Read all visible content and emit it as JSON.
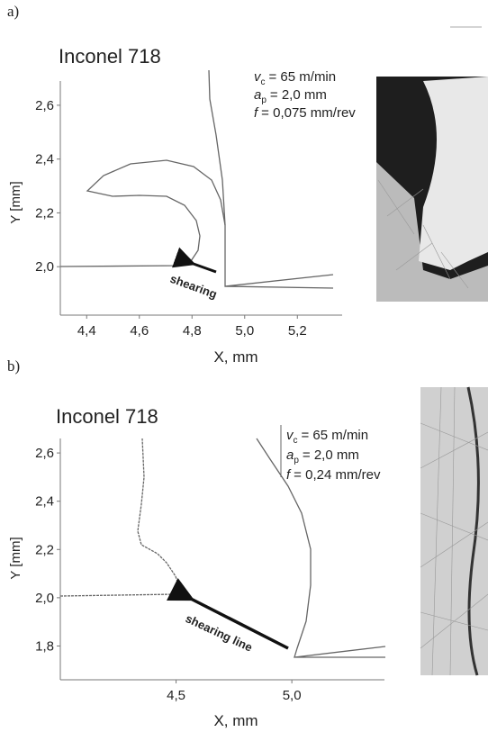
{
  "panels": [
    {
      "label": "a)",
      "title": "Inconel 718",
      "params": [
        {
          "symbol": "v",
          "subscript": "c",
          "text": "= 65 m/min"
        },
        {
          "symbol": "a",
          "subscript": "p",
          "text": "= 2,0 mm"
        },
        {
          "symbol": "f",
          "text": "= 0,075 mm/rev"
        }
      ],
      "x_label": "X, mm",
      "y_label": "Y [mm]",
      "xlim": [
        4.3,
        5.37
      ],
      "ylim": [
        1.82,
        2.69
      ],
      "xticks": [
        {
          "value": 4.4,
          "label": "4,4"
        },
        {
          "value": 4.6,
          "label": "4,6"
        },
        {
          "value": 4.8,
          "label": "4,8"
        },
        {
          "value": 5.0,
          "label": "5,0"
        },
        {
          "value": 5.2,
          "label": "5,2"
        }
      ],
      "yticks": [
        {
          "value": 2.0,
          "label": "2,0"
        },
        {
          "value": 2.2,
          "label": "2,2"
        },
        {
          "value": 2.4,
          "label": "2,4"
        },
        {
          "value": 2.6,
          "label": "2,6"
        }
      ],
      "annotation": "shearing"
    },
    {
      "label": "b)",
      "title": "Inconel 718",
      "params": [
        {
          "symbol": "v",
          "subscript": "c",
          "text": "= 65 m/min"
        },
        {
          "symbol": "a",
          "subscript": "p",
          "text": "= 2,0 mm"
        },
        {
          "symbol": "f",
          "text": "= 0,24 mm/rev"
        }
      ],
      "x_label": "X, mm",
      "y_label": "Y [mm]",
      "xlim": [
        4.0,
        5.4
      ],
      "ylim": [
        1.66,
        2.66
      ],
      "xticks": [
        {
          "value": 4.5,
          "label": "4,5"
        },
        {
          "value": 5.0,
          "label": "5,0"
        }
      ],
      "yticks": [
        {
          "value": 1.8,
          "label": "1,8"
        },
        {
          "value": 2.0,
          "label": "2,0"
        },
        {
          "value": 2.2,
          "label": "2,2"
        },
        {
          "value": 2.4,
          "label": "2,4"
        },
        {
          "value": 2.6,
          "label": "2,6"
        }
      ],
      "annotation": "shearing line"
    }
  ]
}
